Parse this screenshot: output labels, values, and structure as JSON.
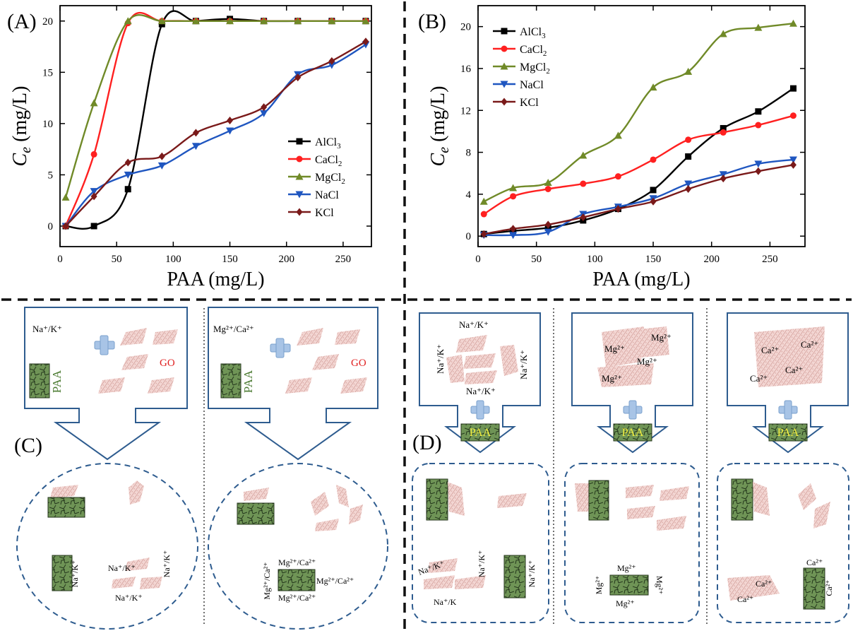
{
  "panel_labels": {
    "a": "(A)",
    "b": "(B)",
    "c": "(C)",
    "d": "(D)"
  },
  "chart_data": [
    {
      "type": "line",
      "panel": "(A)",
      "xlabel": "PAA (mg/L)",
      "ylabel_main": "C",
      "ylabel_sub": "e",
      "ylabel_unit": " (mg/L)",
      "xlim": [
        0,
        275
      ],
      "ylim": [
        -2,
        21.5
      ],
      "xticks": [
        0,
        50,
        100,
        150,
        200,
        250
      ],
      "yticks": [
        0,
        5,
        10,
        15,
        20
      ],
      "legend_position": "center-right",
      "series": [
        {
          "name": "AlCl",
          "sub": "3",
          "color": "#000000",
          "marker": "square",
          "x": [
            5,
            30,
            60,
            90,
            120,
            150,
            180,
            210,
            240,
            270
          ],
          "y": [
            0,
            0,
            3.6,
            19.7,
            20.0,
            20.2,
            20.0,
            20.0,
            20.0,
            20.0
          ]
        },
        {
          "name": "CaCl",
          "sub": "2",
          "color": "#ff2020",
          "marker": "circle",
          "x": [
            5,
            30,
            60,
            90,
            120,
            150,
            180,
            210,
            240,
            270
          ],
          "y": [
            0,
            7.0,
            19.8,
            20.0,
            20.0,
            20.0,
            20.0,
            20.0,
            20.0,
            20.0
          ]
        },
        {
          "name": "MgCl",
          "sub": "2",
          "color": "#708a28",
          "marker": "triangle",
          "x": [
            5,
            30,
            60,
            90,
            120,
            150,
            180,
            210,
            240,
            270
          ],
          "y": [
            2.8,
            12.0,
            20.0,
            20.0,
            20.0,
            20.0,
            20.0,
            20.0,
            20.0,
            20.0
          ]
        },
        {
          "name": "NaCl",
          "sub": "",
          "color": "#1f56c0",
          "marker": "triangle-down",
          "x": [
            5,
            30,
            60,
            90,
            120,
            150,
            180,
            210,
            240,
            270
          ],
          "y": [
            0,
            3.4,
            5.0,
            5.9,
            7.8,
            9.3,
            11.0,
            14.8,
            15.7,
            17.7
          ]
        },
        {
          "name": "KCl",
          "sub": "",
          "color": "#7a1a1a",
          "marker": "diamond",
          "x": [
            5,
            30,
            60,
            90,
            120,
            150,
            180,
            210,
            240,
            270
          ],
          "y": [
            0,
            2.9,
            6.2,
            6.8,
            9.1,
            10.3,
            11.6,
            14.5,
            16.1,
            18.0
          ]
        }
      ]
    },
    {
      "type": "line",
      "panel": "(B)",
      "xlabel": "PAA (mg/L)",
      "ylabel_main": "C",
      "ylabel_sub": "e",
      "ylabel_unit": " (mg/L)",
      "xlim": [
        0,
        280
      ],
      "ylim": [
        -1,
        22
      ],
      "xticks": [
        0,
        50,
        100,
        150,
        200,
        250
      ],
      "yticks": [
        0,
        4,
        8,
        12,
        16,
        20
      ],
      "legend_position": "top-left",
      "series": [
        {
          "name": "AlCl",
          "sub": "3",
          "color": "#000000",
          "marker": "square",
          "x": [
            5,
            30,
            60,
            90,
            120,
            150,
            180,
            210,
            240,
            270
          ],
          "y": [
            0.2,
            0.5,
            0.8,
            1.5,
            2.6,
            4.4,
            7.6,
            10.3,
            11.9,
            14.1
          ]
        },
        {
          "name": "CaCl",
          "sub": "2",
          "color": "#ff2020",
          "marker": "circle",
          "x": [
            5,
            30,
            60,
            90,
            120,
            150,
            180,
            210,
            240,
            270
          ],
          "y": [
            2.1,
            3.8,
            4.5,
            5.0,
            5.7,
            7.3,
            9.2,
            9.9,
            10.6,
            11.5
          ]
        },
        {
          "name": "MgCl",
          "sub": "2",
          "color": "#708a28",
          "marker": "triangle",
          "x": [
            5,
            30,
            60,
            90,
            120,
            150,
            180,
            210,
            240,
            270
          ],
          "y": [
            3.3,
            4.6,
            5.1,
            7.7,
            9.6,
            14.2,
            15.7,
            19.3,
            19.9,
            20.3
          ]
        },
        {
          "name": "NaCl",
          "sub": "",
          "color": "#1f56c0",
          "marker": "triangle-down",
          "x": [
            5,
            30,
            60,
            90,
            120,
            150,
            180,
            210,
            240,
            270
          ],
          "y": [
            0.1,
            0.1,
            0.4,
            2.1,
            2.8,
            3.6,
            5.0,
            5.9,
            6.9,
            7.3
          ]
        },
        {
          "name": "KCl",
          "sub": "",
          "color": "#7a1a1a",
          "marker": "diamond",
          "x": [
            5,
            30,
            60,
            90,
            120,
            150,
            180,
            210,
            240,
            270
          ],
          "y": [
            0.2,
            0.7,
            1.1,
            1.8,
            2.6,
            3.3,
            4.5,
            5.5,
            6.2,
            6.8
          ]
        }
      ]
    }
  ],
  "schematic": {
    "go_label": "GO",
    "paa_label": "PAA",
    "c_left": {
      "ion_label": "Na⁺/K⁺",
      "bottom_ion_right": "Na⁺/K⁺",
      "bottom_ion_vertical": "Na⁺/K⁺",
      "bottom_ion_cluster_top": "Na⁺/K⁺",
      "bottom_ion_cluster_right": "Na⁺/K⁺",
      "bottom_ion_cluster_bottom": "Na⁺/K⁺"
    },
    "c_right": {
      "ion_label": "Mg²⁺/Ca²⁺",
      "ion_top": "Mg²⁺/Ca²⁺",
      "ion_right": "Mg²⁺/Ca²⁺",
      "ion_bottom": "Mg²⁺/Ca²⁺",
      "ion_left": "Mg²⁺/Ca²⁺"
    },
    "d1": {
      "top": "Na⁺/K⁺",
      "left": "Na⁺/K⁺",
      "right": "Na⁺/K⁺",
      "bottom": "Na⁺/K⁺",
      "b_left": "Na⁺/K⁺",
      "b_right": "Na⁺/K⁺",
      "b_bottom": "Na⁺/K",
      "b_paa_side": "Na⁺/K⁺"
    },
    "d2": {
      "ions": [
        "Mg²⁺",
        "Mg²⁺",
        "Mg²⁺",
        "Mg²⁺"
      ],
      "b_top": "Mg²⁺",
      "b_left": "Mg²⁺",
      "b_right": "Mg²⁺",
      "b_bottom": "Mg²⁺"
    },
    "d3": {
      "ions": [
        "Ca²⁺",
        "Ca²⁺",
        "Ca²⁺",
        "Ca²⁺"
      ],
      "b_ions": [
        "Ca²⁺",
        "Ca²⁺",
        "Ca²⁺",
        "Ca²⁺"
      ]
    }
  }
}
